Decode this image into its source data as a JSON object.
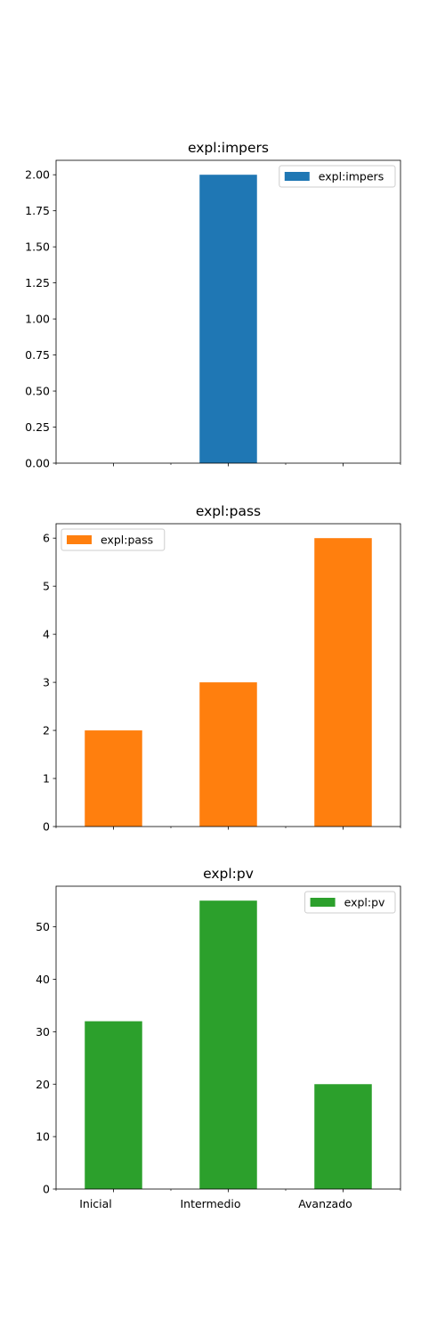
{
  "chart_data": [
    {
      "type": "bar",
      "title": "expl:impers",
      "categories": [
        "Inicial",
        "Intermedio",
        "Avanzado"
      ],
      "series": [
        {
          "name": "expl:impers",
          "values": [
            0,
            2,
            0
          ]
        }
      ],
      "color": "#1f77b4",
      "ylim": [
        0,
        2.1
      ],
      "yticks": [
        "0.00",
        "0.25",
        "0.50",
        "0.75",
        "1.00",
        "1.25",
        "1.50",
        "1.75",
        "2.00"
      ],
      "legend": "top-right",
      "show_x_labels": false
    },
    {
      "type": "bar",
      "title": "expl:pass",
      "categories": [
        "Inicial",
        "Intermedio",
        "Avanzado"
      ],
      "series": [
        {
          "name": "expl:pass",
          "values": [
            2,
            3,
            6
          ]
        }
      ],
      "color": "#ff7f0e",
      "ylim": [
        0,
        6.3
      ],
      "yticks": [
        "0",
        "1",
        "2",
        "3",
        "4",
        "5",
        "6"
      ],
      "legend": "top-left",
      "show_x_labels": false
    },
    {
      "type": "bar",
      "title": "expl:pv",
      "categories": [
        "Inicial",
        "Intermedio",
        "Avanzado"
      ],
      "series": [
        {
          "name": "expl:pv",
          "values": [
            32,
            55,
            20
          ]
        }
      ],
      "color": "#2ca02c",
      "ylim": [
        0,
        57.75
      ],
      "yticks": [
        "0",
        "10",
        "20",
        "30",
        "40",
        "50"
      ],
      "legend": "top-right",
      "show_x_labels": true
    }
  ]
}
